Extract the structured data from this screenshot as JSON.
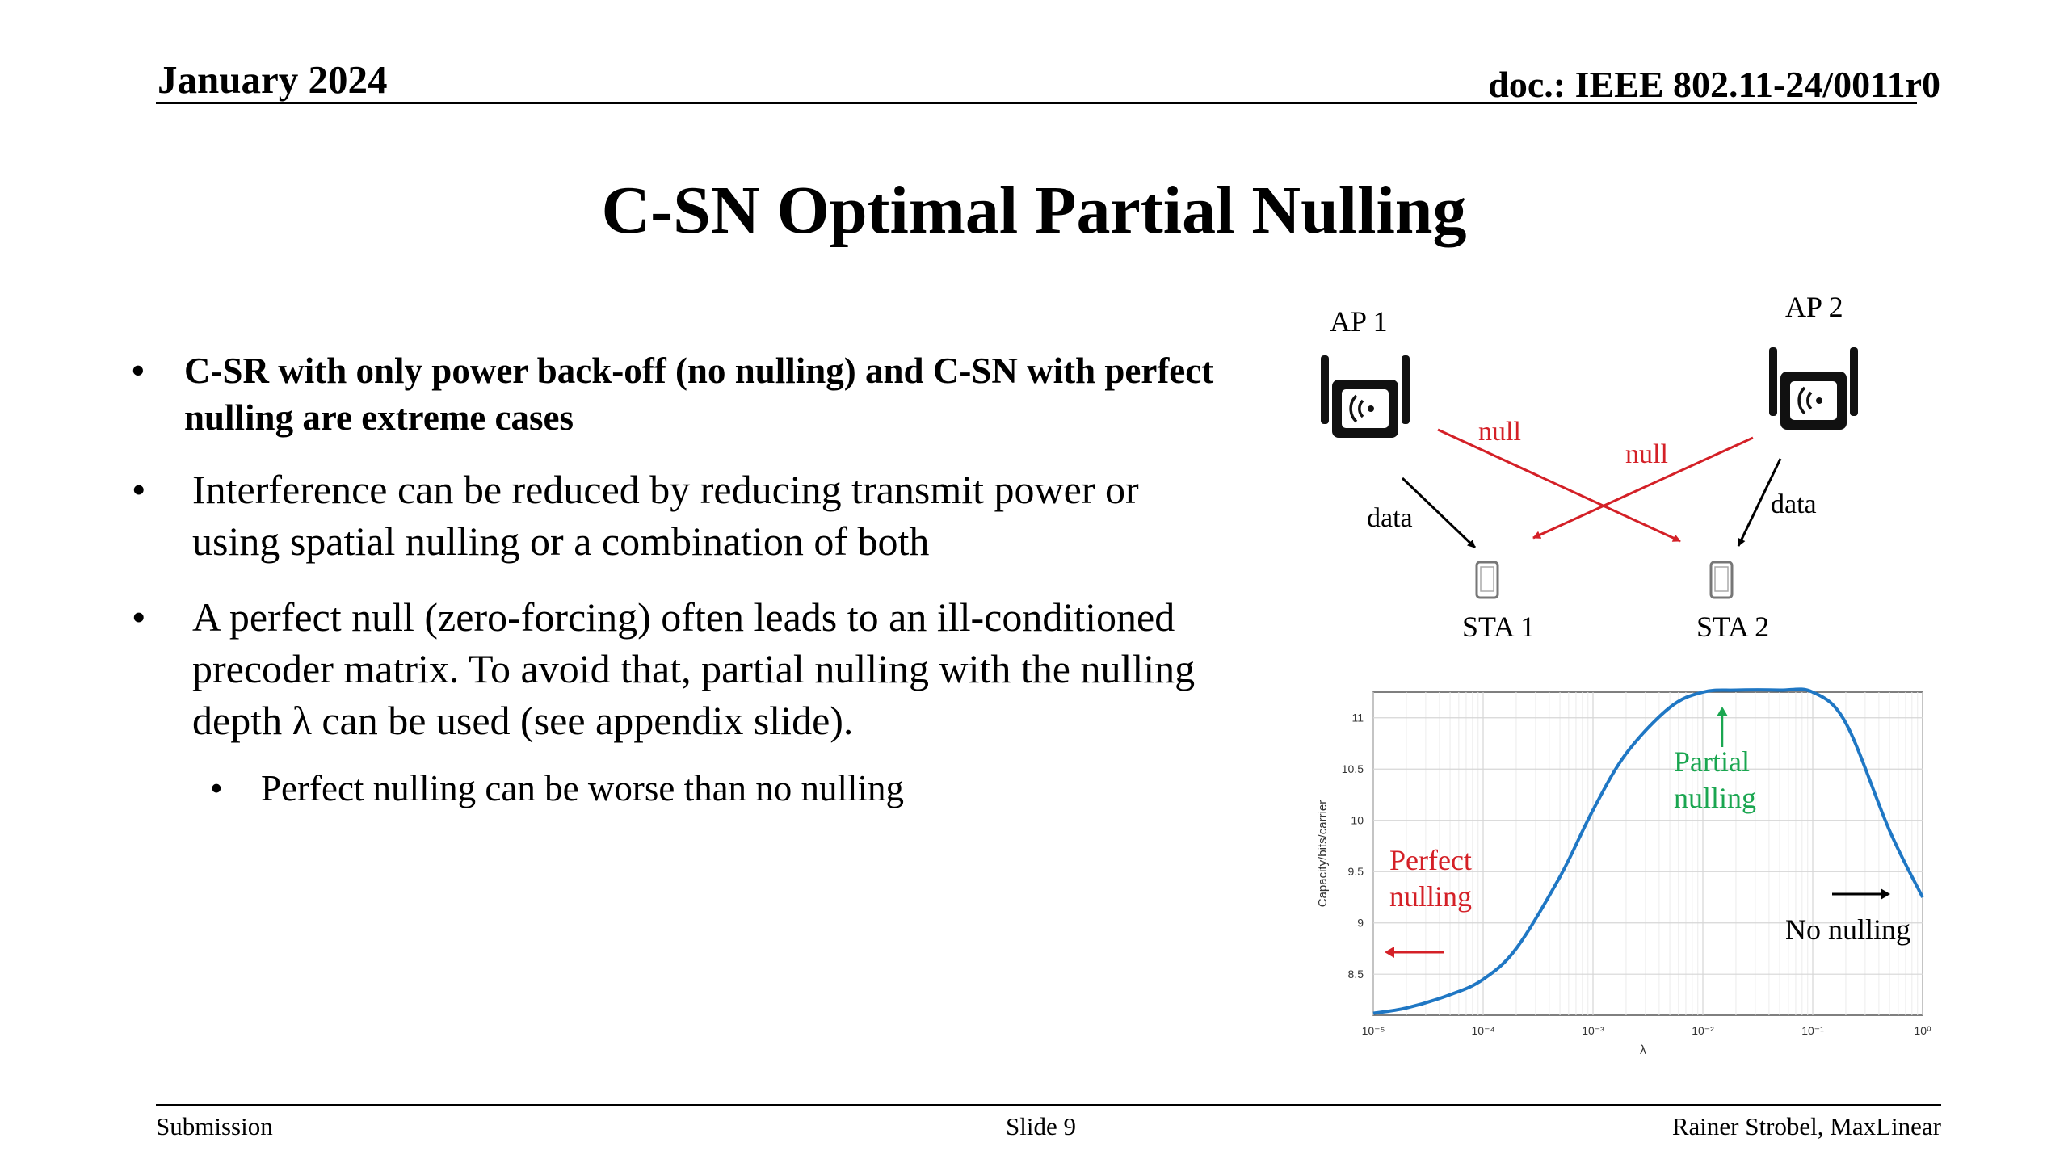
{
  "header": {
    "date": "January 2024",
    "doc": "doc.: IEEE 802.11-24/0011r0"
  },
  "title": "C-SN Optimal Partial Nulling",
  "bullets": [
    {
      "text": "C-SR with only power back-off (no nulling) and C-SN with perfect nulling are extreme cases"
    },
    {
      "text": "Interference can be reduced by reducing transmit power or using spatial nulling or a combination of both"
    },
    {
      "text": "A perfect null (zero-forcing) often leads to an ill-conditioned precoder matrix. To avoid that, partial nulling with the nulling depth λ can be used (see appendix slide)."
    }
  ],
  "sub_bullet": {
    "text": "Perfect nulling can be worse than no nulling"
  },
  "diagram": {
    "ap1": "AP 1",
    "ap2": "AP 2",
    "sta1": "STA 1",
    "sta2": "STA 2",
    "null_label": "null",
    "data_label": "data",
    "colors": {
      "null": "#d42027",
      "data": "#000000"
    },
    "icons": [
      "access-point-icon",
      "mobile-phone-icon"
    ]
  },
  "chart_data": {
    "type": "line",
    "xlabel": "λ",
    "ylabel": "Capacity/bits/carrier",
    "xscale": "log",
    "x_ticks": [
      "10⁻⁵",
      "10⁻⁴",
      "10⁻³",
      "10⁻²",
      "10⁻¹",
      "10⁰"
    ],
    "y_ticks": [
      "8.5",
      "9",
      "9.5",
      "10",
      "10.5",
      "11"
    ],
    "xlim": [
      1e-05,
      1.0
    ],
    "ylim": [
      8.1,
      11.25
    ],
    "grid": true,
    "line_color": "#1f77c4",
    "series": [
      {
        "x": [
          1e-05,
          2e-05,
          5e-05,
          0.0001,
          0.0002,
          0.0005,
          0.001,
          0.002,
          0.005,
          0.01,
          0.02,
          0.05,
          0.1,
          0.2,
          0.5,
          1.0
        ],
        "y": [
          8.12,
          8.17,
          8.3,
          8.45,
          8.75,
          9.45,
          10.1,
          10.65,
          11.1,
          11.25,
          11.27,
          11.27,
          11.25,
          10.95,
          9.9,
          9.25
        ]
      }
    ],
    "annotations": {
      "partial": {
        "text": [
          "Partial",
          "nulling"
        ],
        "color": "#1aa650"
      },
      "perfect": {
        "text": [
          "Perfect",
          "nulling"
        ],
        "color": "#d42027"
      },
      "none": {
        "text": [
          "No nulling"
        ],
        "color": "#000000"
      }
    }
  },
  "footer": {
    "left": "Submission",
    "center": "Slide 9",
    "right": "Rainer Strobel, MaxLinear"
  }
}
